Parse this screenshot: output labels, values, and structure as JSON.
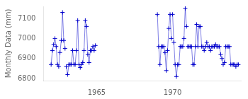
{
  "chart_data": {
    "type": "line",
    "ylabel": "Monthly Data (mm)",
    "xlim": [
      1961.5,
      1974.5
    ],
    "ylim": [
      6790,
      7160
    ],
    "xticks": [
      1965,
      1970
    ],
    "yticks": [
      6800,
      6900,
      7000,
      7100
    ],
    "grid": false,
    "series": [
      {
        "color": "#0000cc",
        "marker": "plus",
        "line_style": "solid",
        "x": [
          1962.0,
          1962.083,
          1962.167,
          1962.25,
          1962.333,
          1962.417,
          1962.5,
          1962.583,
          1962.667,
          1962.75,
          1962.833,
          1962.917
        ],
        "values": [
          6870,
          6940,
          6970,
          7000,
          6960,
          6870,
          6860,
          6930,
          6990,
          7130,
          6990,
          6950
        ]
      },
      {
        "color": "#0000cc",
        "marker": "plus",
        "line_style": "solid",
        "x": [
          1963.0,
          1963.083,
          1963.167,
          1963.25,
          1963.333,
          1963.417,
          1963.5,
          1963.583,
          1963.667,
          1963.75,
          1963.833,
          1963.917
        ],
        "values": [
          6860,
          6820,
          6870,
          6870,
          6870,
          6940,
          6870,
          6870,
          6940,
          7090,
          6870,
          6855
        ]
      },
      {
        "color": "#0000cc",
        "marker": "plus",
        "line_style": "solid",
        "x": [
          1964.0,
          1964.083,
          1964.167,
          1964.25,
          1964.333,
          1964.417,
          1964.5,
          1964.583,
          1964.667,
          1964.75,
          1964.833,
          1964.917
        ],
        "values": [
          6870,
          6880,
          6940,
          7090,
          7060,
          6920,
          6880,
          6940,
          6940,
          6960,
          6940,
          6965
        ]
      },
      {
        "color": "#0000cc",
        "marker": "plus",
        "line_style": "solid",
        "x": [
          1969.0,
          1969.083,
          1969.167,
          1969.25,
          1969.333,
          1969.417,
          1969.5,
          1969.583,
          1969.667,
          1969.75,
          1969.833,
          1969.917
        ],
        "values": [
          7120,
          6960,
          6870,
          6960,
          6960,
          6960,
          6930,
          6840,
          6940,
          7050,
          7120,
          7000
        ]
      },
      {
        "color": "#0000cc",
        "marker": "plus",
        "line_style": "solid",
        "x": [
          1970.0,
          1970.083,
          1970.167,
          1970.25,
          1970.333,
          1970.417,
          1970.5,
          1970.583,
          1970.667,
          1970.75,
          1970.833,
          1970.917
        ],
        "values": [
          7120,
          6980,
          6870,
          6810,
          6870,
          6870,
          6960,
          6960,
          6960,
          7000,
          7150,
          7060
        ]
      },
      {
        "color": "#0000cc",
        "marker": "plus",
        "line_style": "solid",
        "x": [
          1971.0,
          1971.083,
          1971.167,
          1971.25,
          1971.333,
          1971.417,
          1971.5,
          1971.583,
          1971.667,
          1971.75,
          1971.833,
          1971.917
        ],
        "values": [
          6960,
          6960,
          6960,
          6960,
          6870,
          6870,
          6960,
          7070,
          6960,
          7060,
          7060,
          6960
        ]
      },
      {
        "color": "#0000cc",
        "marker": "plus",
        "line_style": "solid",
        "x": [
          1972.0,
          1972.083,
          1972.167,
          1972.25,
          1972.333,
          1972.417,
          1972.5,
          1972.583,
          1972.667,
          1972.75,
          1972.833,
          1972.917
        ],
        "values": [
          6960,
          6940,
          6960,
          6980,
          6960,
          6960,
          6940,
          6960,
          6960,
          6960,
          6970,
          6960
        ]
      },
      {
        "color": "#0000cc",
        "marker": "plus",
        "line_style": "solid",
        "x": [
          1973.0,
          1973.083,
          1973.167,
          1973.25,
          1973.333,
          1973.417,
          1973.5,
          1973.583,
          1973.667,
          1973.75,
          1973.833,
          1973.917
        ],
        "values": [
          6960,
          6960,
          6920,
          6900,
          6870,
          6880,
          6960,
          6960,
          6960,
          6960,
          6870,
          6870
        ]
      },
      {
        "color": "#0000cc",
        "marker": "plus",
        "line_style": "solid",
        "x": [
          1974.0,
          1974.083,
          1974.167,
          1974.25,
          1974.333
        ],
        "values": [
          6870,
          6870,
          6860,
          6870,
          6870
        ]
      }
    ]
  }
}
